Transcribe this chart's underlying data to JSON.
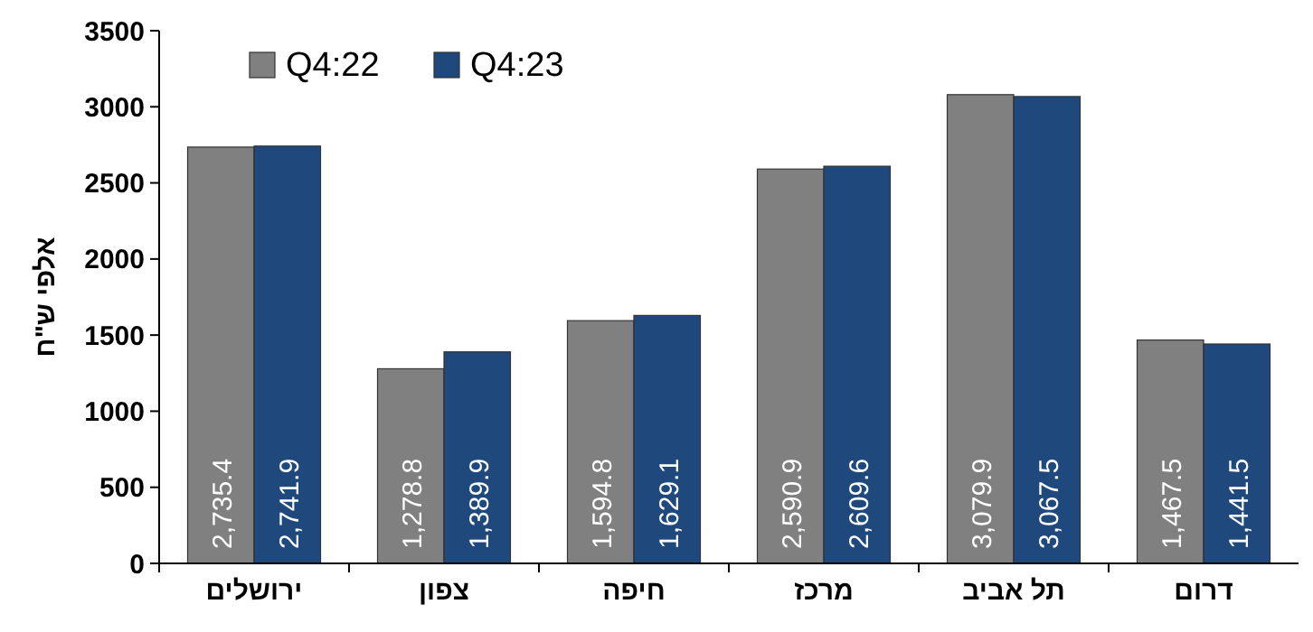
{
  "chart_data": {
    "type": "bar",
    "ylabel": "אלפי ש\"ח",
    "categories": [
      "ירושלים",
      "צפון",
      "חיפה",
      "מרכז",
      "תל אביב",
      "דרום"
    ],
    "series": [
      {
        "name": "Q4:22",
        "color": "#808080",
        "values": [
          2735.4,
          1278.8,
          1594.8,
          2590.9,
          3079.9,
          1467.5
        ],
        "value_labels": [
          "2,735.4",
          "1,278.8",
          "1,594.8",
          "2,590.9",
          "3,079.9",
          "1,467.5"
        ]
      },
      {
        "name": "Q4:23",
        "color": "#1f497d",
        "values": [
          2741.9,
          1389.9,
          1629.1,
          2609.6,
          3067.5,
          1441.5
        ],
        "value_labels": [
          "2,741.9",
          "1,389.9",
          "1,629.1",
          "2,609.6",
          "3,067.5",
          "1,441.5"
        ]
      }
    ],
    "ylim": [
      0,
      3500
    ],
    "yticks": [
      0,
      500,
      1000,
      1500,
      2000,
      2500,
      3000,
      3500
    ],
    "grid": false,
    "legend": "top left"
  }
}
